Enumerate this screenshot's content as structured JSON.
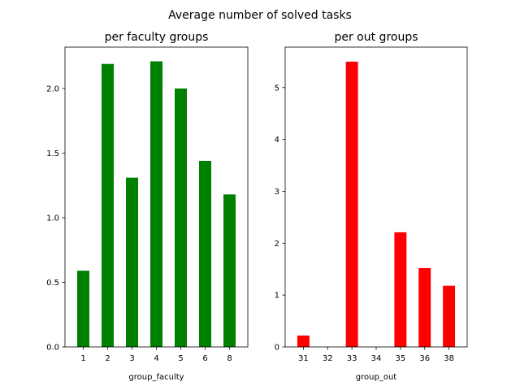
{
  "figure_title": "Average number of solved tasks",
  "chart_data": [
    {
      "type": "bar",
      "title": "per faculty groups",
      "xlabel": "group_faculty",
      "ylabel": "",
      "categories": [
        "1",
        "2",
        "3",
        "4",
        "5",
        "6",
        "8"
      ],
      "values": [
        0.59,
        2.19,
        1.31,
        2.21,
        2.0,
        1.44,
        1.18
      ],
      "ylim": [
        0,
        2.32
      ],
      "yticks": [
        0.0,
        0.5,
        1.0,
        1.5,
        2.0
      ],
      "ytick_labels": [
        "0.0",
        "0.5",
        "1.0",
        "1.5",
        "2.0"
      ],
      "color": "#008000",
      "grid": false,
      "legend": "none"
    },
    {
      "type": "bar",
      "title": "per out groups",
      "xlabel": "group_out",
      "ylabel": "",
      "categories": [
        "31",
        "32",
        "33",
        "34",
        "35",
        "36",
        "38"
      ],
      "values": [
        0.22,
        0.0,
        5.5,
        0.0,
        2.21,
        1.52,
        1.18
      ],
      "ylim": [
        0,
        5.78
      ],
      "yticks": [
        0,
        1,
        2,
        3,
        4,
        5
      ],
      "ytick_labels": [
        "0",
        "1",
        "2",
        "3",
        "4",
        "5"
      ],
      "color": "#ff0000",
      "grid": false,
      "legend": "none"
    }
  ]
}
